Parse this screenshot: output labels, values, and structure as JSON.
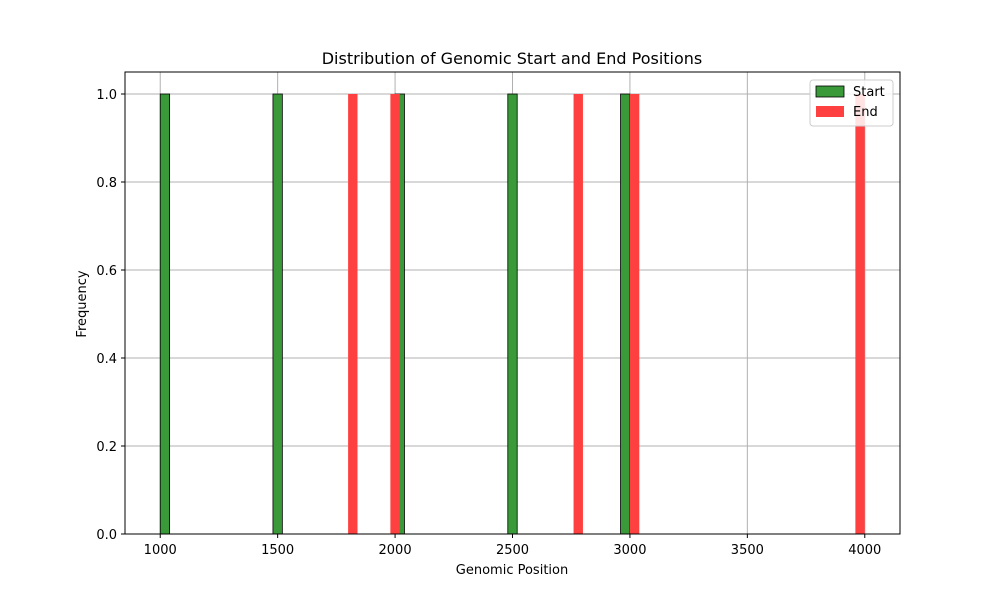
{
  "chart_data": {
    "type": "bar",
    "title": "Distribution of Genomic Start and End Positions",
    "xlabel": "Genomic Position",
    "ylabel": "Frequency",
    "xlim": [
      850,
      4150
    ],
    "ylim": [
      0,
      1.05
    ],
    "xticks": [
      1000,
      1500,
      2000,
      2500,
      3000,
      3500,
      4000
    ],
    "yticks": [
      0.0,
      0.2,
      0.4,
      0.6,
      0.8,
      1.0
    ],
    "ytick_labels": [
      "0.0",
      "0.2",
      "0.4",
      "0.6",
      "0.8",
      "1.0"
    ],
    "grid": true,
    "legend_position": "top-right",
    "series": [
      {
        "name": "Start",
        "color": "#3a9a3a",
        "bins": [
          {
            "x0": 1000,
            "x1": 1040,
            "count": 1
          },
          {
            "x0": 1480,
            "x1": 1520,
            "count": 1
          },
          {
            "x0": 2000,
            "x1": 2040,
            "count": 1
          },
          {
            "x0": 2480,
            "x1": 2520,
            "count": 1
          },
          {
            "x0": 2960,
            "x1": 3000,
            "count": 1
          }
        ]
      },
      {
        "name": "End",
        "color": "#ff4040",
        "bins": [
          {
            "x0": 1800,
            "x1": 1840,
            "count": 1
          },
          {
            "x0": 1980,
            "x1": 2020,
            "count": 1
          },
          {
            "x0": 2760,
            "x1": 2800,
            "count": 1
          },
          {
            "x0": 3000,
            "x1": 3040,
            "count": 1
          },
          {
            "x0": 3960,
            "x1": 4000,
            "count": 1
          }
        ]
      }
    ]
  }
}
